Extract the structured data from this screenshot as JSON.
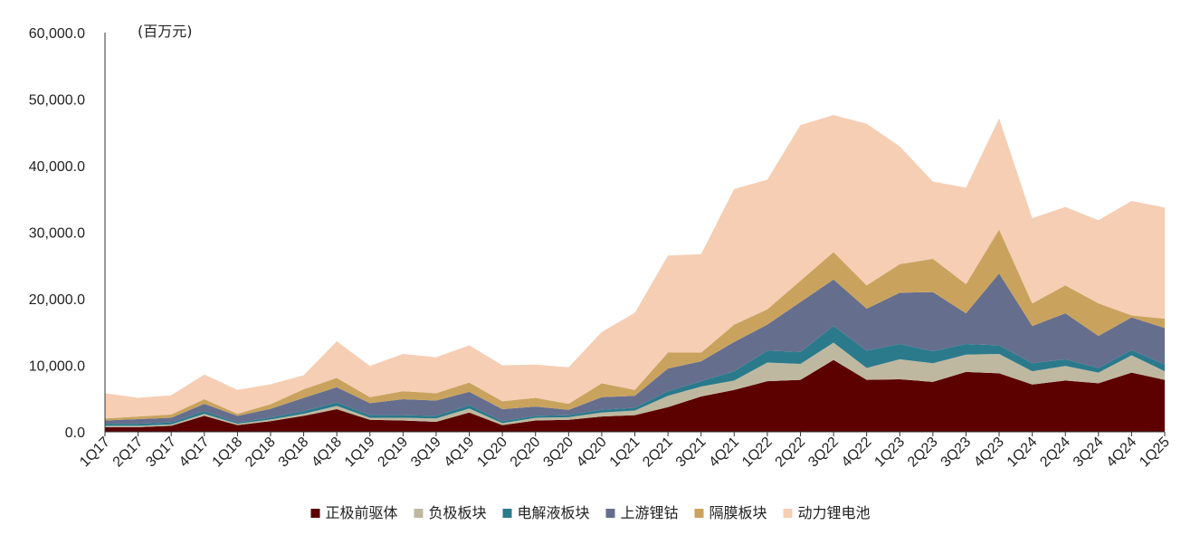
{
  "chart_data": {
    "type": "area",
    "stacked": true,
    "unit_label": "(百万元)",
    "ylim": [
      0,
      60000
    ],
    "yticks": [
      0,
      10000,
      20000,
      30000,
      40000,
      50000,
      60000
    ],
    "ytick_labels": [
      "0.0",
      "10,000.0",
      "20,000.0",
      "30,000.0",
      "40,000.0",
      "50,000.0",
      "60,000.0"
    ],
    "grid": false,
    "legend_position": "bottom",
    "categories": [
      "1Q17",
      "2Q17",
      "3Q17",
      "4Q17",
      "1Q18",
      "2Q18",
      "3Q18",
      "4Q18",
      "1Q19",
      "2Q19",
      "3Q19",
      "4Q19",
      "1Q20",
      "2Q20",
      "3Q20",
      "4Q20",
      "1Q21",
      "2Q21",
      "3Q21",
      "4Q21",
      "1Q22",
      "2Q22",
      "3Q22",
      "4Q22",
      "1Q23",
      "2Q23",
      "3Q23",
      "4Q23",
      "1Q24",
      "2Q24",
      "3Q24",
      "4Q24",
      "1Q25"
    ],
    "series": [
      {
        "name": "正极前驱体",
        "color": "#5c0000",
        "values": [
          700,
          700,
          900,
          2400,
          1000,
          1600,
          2400,
          3400,
          1800,
          1700,
          1500,
          2900,
          1000,
          1700,
          1800,
          2300,
          2500,
          3700,
          5300,
          6300,
          7600,
          7800,
          10800,
          7800,
          7900,
          7500,
          9000,
          8800,
          7100,
          7700,
          7300,
          8900,
          7800
        ]
      },
      {
        "name": "负极板块",
        "color": "#bfb8a0",
        "values": [
          200,
          200,
          200,
          300,
          200,
          250,
          300,
          500,
          300,
          400,
          500,
          600,
          300,
          400,
          400,
          600,
          700,
          1700,
          1500,
          1400,
          2800,
          2400,
          2600,
          1800,
          3000,
          2800,
          2600,
          2900,
          2000,
          2200,
          1600,
          2600,
          1300
        ]
      },
      {
        "name": "电解液板块",
        "color": "#2a7a8c",
        "values": [
          300,
          300,
          300,
          400,
          200,
          300,
          400,
          500,
          400,
          400,
          400,
          500,
          300,
          300,
          300,
          400,
          400,
          700,
          800,
          1400,
          1800,
          1800,
          2500,
          2600,
          2300,
          1800,
          1600,
          1300,
          1200,
          1000,
          700,
          800,
          1000
        ]
      },
      {
        "name": "上游锂钴",
        "color": "#666e8e",
        "values": [
          500,
          700,
          700,
          1100,
          1000,
          1300,
          2000,
          2300,
          1800,
          2400,
          2300,
          2000,
          1800,
          1400,
          800,
          1900,
          1800,
          3400,
          3000,
          4400,
          3900,
          7500,
          7000,
          6300,
          7700,
          8900,
          4600,
          10800,
          5600,
          6900,
          4800,
          4900,
          5500
        ]
      },
      {
        "name": "隔膜板块",
        "color": "#c9a35e",
        "values": [
          300,
          400,
          500,
          700,
          300,
          700,
          1300,
          1400,
          900,
          1200,
          1100,
          1400,
          1200,
          1300,
          900,
          2100,
          900,
          2400,
          1300,
          2600,
          2300,
          3200,
          4100,
          3500,
          4300,
          5000,
          4400,
          6600,
          3400,
          4200,
          4900,
          300,
          1400
        ]
      },
      {
        "name": "动力锂电池",
        "color": "#f5ceb4",
        "values": [
          3800,
          2800,
          2900,
          3700,
          3600,
          3000,
          2100,
          5500,
          4700,
          5600,
          5400,
          5600,
          5400,
          5000,
          5500,
          7700,
          11600,
          14600,
          14800,
          20400,
          19500,
          23400,
          20600,
          24300,
          17700,
          11600,
          14500,
          16700,
          12800,
          11800,
          12500,
          17200,
          16700
        ]
      }
    ]
  }
}
